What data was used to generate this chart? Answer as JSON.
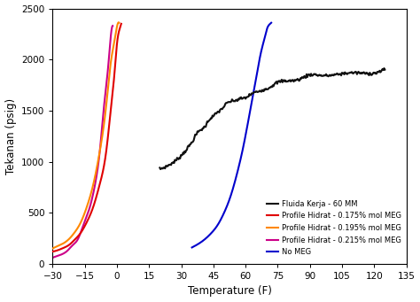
{
  "title": "",
  "xlabel": "Temperature (F)",
  "ylabel": "Tekanan (psig)",
  "xlim": [
    -30,
    135
  ],
  "ylim": [
    0,
    2500
  ],
  "xticks": [
    -30,
    -15,
    0,
    15,
    30,
    45,
    60,
    75,
    90,
    105,
    120,
    135
  ],
  "yticks": [
    0,
    500,
    1000,
    1500,
    2000,
    2500
  ],
  "colors": {
    "black": "#111111",
    "red": "#e00000",
    "orange": "#ff8800",
    "magenta": "#cc0088",
    "blue": "#0000cc"
  },
  "background_color": "#ffffff",
  "fluida_t": [
    20,
    25,
    30,
    33,
    35,
    37,
    39,
    41,
    43,
    45,
    47,
    49,
    51,
    55,
    58,
    60,
    63,
    65,
    68,
    70,
    75,
    80,
    85,
    90,
    95,
    100,
    110,
    120,
    125
  ],
  "fluida_p": [
    910,
    980,
    1060,
    1130,
    1200,
    1265,
    1310,
    1360,
    1400,
    1440,
    1490,
    1520,
    1560,
    1600,
    1620,
    1640,
    1660,
    1680,
    1700,
    1730,
    1760,
    1790,
    1810,
    1830,
    1845,
    1860,
    1875,
    1890,
    1895
  ],
  "red_t": [
    -30,
    -28,
    -25,
    -22,
    -20,
    -17,
    -14,
    -11,
    -8,
    -5,
    -3,
    -1,
    0,
    1,
    2
  ],
  "red_p": [
    120,
    130,
    155,
    190,
    230,
    300,
    410,
    560,
    780,
    1100,
    1480,
    1900,
    2150,
    2280,
    2350
  ],
  "orange_t": [
    -30,
    -28,
    -25,
    -22,
    -20,
    -17,
    -14,
    -11,
    -8,
    -5,
    -3,
    -1,
    0,
    1
  ],
  "orange_p": [
    150,
    170,
    200,
    250,
    300,
    400,
    560,
    780,
    1100,
    1550,
    1950,
    2200,
    2320,
    2360
  ],
  "pink_t": [
    -30,
    -28,
    -25,
    -23,
    -21,
    -18,
    -16,
    -13,
    -10,
    -8,
    -6,
    -4,
    -3,
    -2
  ],
  "pink_p": [
    60,
    75,
    100,
    130,
    175,
    250,
    360,
    530,
    800,
    1100,
    1550,
    1950,
    2200,
    2330
  ],
  "blue_t": [
    35,
    38,
    41,
    44,
    47,
    50,
    53,
    56,
    59,
    62,
    65,
    67,
    69,
    70,
    71,
    72
  ],
  "blue_p": [
    160,
    195,
    240,
    300,
    380,
    500,
    660,
    880,
    1150,
    1480,
    1820,
    2050,
    2220,
    2300,
    2340,
    2360
  ],
  "legend_labels": [
    "Fluida Kerja - 60 MM",
    "Profile Hidrat - 0.175% mol MEG",
    "Profile Hidrat - 0.195% mol MEG",
    "Profile Hidrat - 0.215% mol MEG",
    "No MEG"
  ]
}
